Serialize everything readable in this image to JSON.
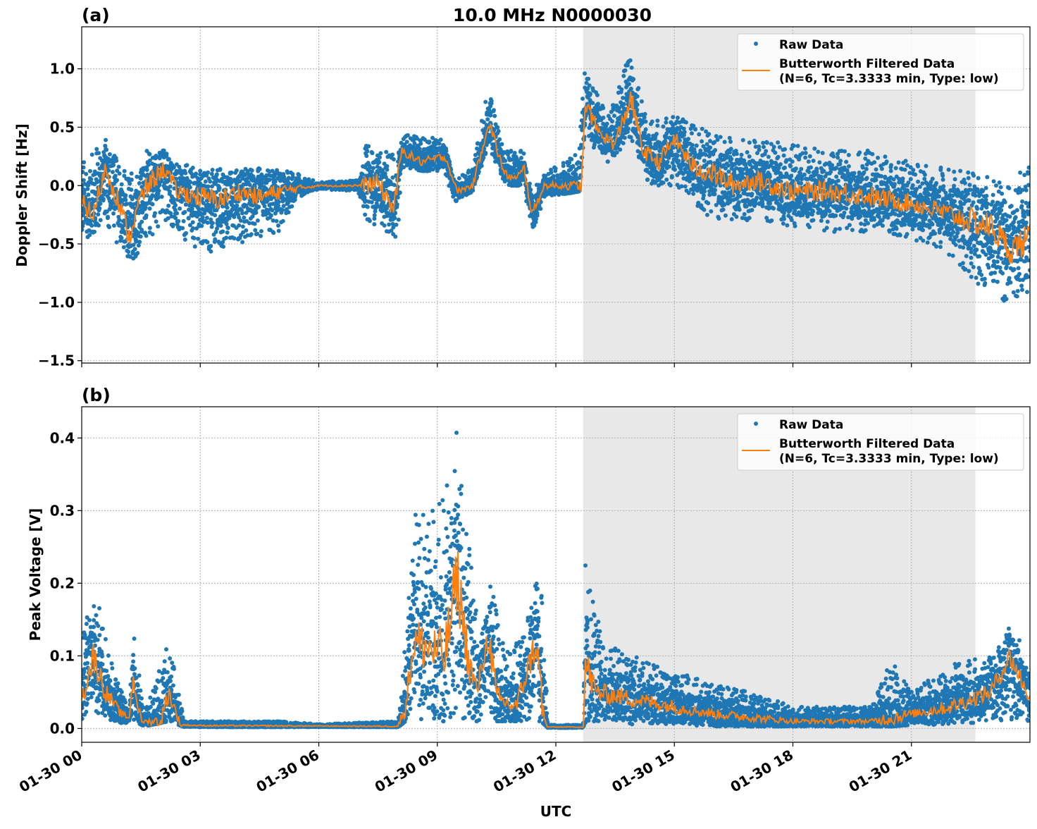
{
  "chart_data": [
    {
      "type": "scatter",
      "panel_label": "(a)",
      "title": "10.0 MHz N0000030",
      "xlabel": "",
      "ylabel": "Doppler Shift [Hz]",
      "xlim_hours_utc": [
        0,
        24
      ],
      "ylim": [
        -1.52,
        1.36
      ],
      "yticks": [
        1.0,
        0.5,
        0.0,
        -0.5,
        -1.0,
        -1.5
      ],
      "ytick_labels": [
        "1.0",
        "0.5",
        "0.0",
        "−0.5",
        "−1.0",
        "−1.5"
      ],
      "grid": true,
      "shaded_span_hours_utc": [
        12.69,
        22.62
      ],
      "shade_color": "#e8e8e8",
      "legend": {
        "placement": "top-right",
        "entries": [
          "Raw Data",
          "Butterworth Filtered Data",
          "(N=6, Tc=3.3333 min, Type: low)"
        ]
      },
      "series": [
        {
          "name": "Raw Data",
          "color": "#1f77b4",
          "marker": "dot",
          "range_by_hour": [
            [
              0,
              -0.5,
              0.2
            ],
            [
              0.6,
              -0.3,
              0.4
            ],
            [
              1.2,
              -0.7,
              0.1
            ],
            [
              1.6,
              -0.5,
              0.3
            ],
            [
              2.1,
              -0.3,
              0.3
            ],
            [
              2.4,
              -0.4,
              0.2
            ],
            [
              3,
              -0.6,
              0.15
            ],
            [
              4,
              -0.5,
              0.15
            ],
            [
              5,
              -0.4,
              0.15
            ],
            [
              5.5,
              -0.1,
              0.1
            ],
            [
              6,
              -0.03,
              0.03
            ],
            [
              7,
              -0.05,
              0.05
            ],
            [
              7.2,
              -0.3,
              0.35
            ],
            [
              8,
              -0.45,
              0.25
            ],
            [
              8.1,
              0.15,
              0.45
            ],
            [
              9.2,
              0.1,
              0.4
            ],
            [
              9.4,
              -0.15,
              0.05
            ],
            [
              9.9,
              -0.05,
              0.15
            ],
            [
              10.3,
              0.35,
              0.85
            ],
            [
              10.7,
              0.0,
              0.3
            ],
            [
              11.2,
              0.0,
              0.3
            ],
            [
              11.4,
              -0.45,
              -0.05
            ],
            [
              11.7,
              -0.1,
              0.1
            ],
            [
              12.6,
              -0.05,
              0.3
            ],
            [
              12.7,
              0.4,
              1.05
            ],
            [
              13.3,
              0.2,
              0.6
            ],
            [
              13.9,
              0.4,
              1.15
            ],
            [
              14.3,
              0.0,
              0.55
            ],
            [
              15,
              0.0,
              0.6
            ],
            [
              16,
              -0.3,
              0.45
            ],
            [
              17,
              -0.3,
              0.4
            ],
            [
              18,
              -0.35,
              0.35
            ],
            [
              19,
              -0.4,
              0.3
            ],
            [
              20,
              -0.4,
              0.3
            ],
            [
              21,
              -0.45,
              0.2
            ],
            [
              22,
              -0.6,
              0.15
            ],
            [
              22.8,
              -0.9,
              0.1
            ],
            [
              23.4,
              -1.0,
              0.0
            ],
            [
              24,
              -0.9,
              0.2
            ]
          ]
        },
        {
          "name": "Butterworth Filtered Data",
          "color": "#ff7f0e",
          "marker": "line",
          "points_by_hour": [
            [
              0,
              -0.15
            ],
            [
              0.3,
              -0.25
            ],
            [
              0.6,
              0.15
            ],
            [
              0.9,
              -0.1
            ],
            [
              1.2,
              -0.45
            ],
            [
              1.5,
              -0.1
            ],
            [
              1.8,
              0.05
            ],
            [
              2.1,
              0.15
            ],
            [
              2.4,
              -0.05
            ],
            [
              3,
              -0.1
            ],
            [
              3.5,
              -0.12
            ],
            [
              4,
              -0.05
            ],
            [
              4.5,
              -0.1
            ],
            [
              5,
              -0.05
            ],
            [
              5.5,
              -0.02
            ],
            [
              6,
              0.0
            ],
            [
              7,
              0.0
            ],
            [
              7.5,
              0.02
            ],
            [
              7.9,
              -0.2
            ],
            [
              8.1,
              0.3
            ],
            [
              8.6,
              0.2
            ],
            [
              9.2,
              0.25
            ],
            [
              9.5,
              -0.05
            ],
            [
              9.9,
              0.0
            ],
            [
              10.3,
              0.55
            ],
            [
              10.7,
              0.1
            ],
            [
              11.0,
              0.05
            ],
            [
              11.2,
              0.15
            ],
            [
              11.4,
              -0.25
            ],
            [
              11.7,
              0.0
            ],
            [
              12.65,
              0.0
            ],
            [
              12.75,
              0.7
            ],
            [
              13.1,
              0.45
            ],
            [
              13.5,
              0.35
            ],
            [
              13.9,
              0.75
            ],
            [
              14.2,
              0.3
            ],
            [
              14.6,
              0.2
            ],
            [
              15,
              0.4
            ],
            [
              15.5,
              0.15
            ],
            [
              16,
              0.1
            ],
            [
              16.5,
              0.0
            ],
            [
              17,
              0.05
            ],
            [
              18,
              -0.05
            ],
            [
              19,
              -0.05
            ],
            [
              20,
              -0.1
            ],
            [
              21,
              -0.15
            ],
            [
              22,
              -0.25
            ],
            [
              22.5,
              -0.3
            ],
            [
              23,
              -0.35
            ],
            [
              23.5,
              -0.55
            ],
            [
              24,
              -0.45
            ]
          ]
        }
      ]
    },
    {
      "type": "scatter",
      "panel_label": "(b)",
      "xlabel": "UTC",
      "ylabel": "Peak Voltage [V]",
      "xlim_hours_utc": [
        0,
        24
      ],
      "ylim": [
        -0.019,
        0.443
      ],
      "yticks": [
        0.0,
        0.1,
        0.2,
        0.3,
        0.4
      ],
      "ytick_labels": [
        "0.0",
        "0.1",
        "0.2",
        "0.3",
        "0.4"
      ],
      "xtick_labels": [
        "01-30 00",
        "01-30 03",
        "01-30 06",
        "01-30 09",
        "01-30 12",
        "01-30 15",
        "01-30 18",
        "01-30 21"
      ],
      "xticks_hours_utc": [
        0,
        3,
        6,
        9,
        12,
        15,
        18,
        21
      ],
      "grid": true,
      "shaded_span_hours_utc": [
        12.69,
        22.62
      ],
      "shade_color": "#e8e8e8",
      "legend": {
        "placement": "top-right",
        "entries": [
          "Raw Data",
          "Butterworth Filtered Data",
          "(N=6, Tc=3.3333 min, Type: low)"
        ]
      },
      "series": [
        {
          "name": "Raw Data",
          "color": "#1f77b4",
          "marker": "dot",
          "range_by_hour": [
            [
              0,
              0.01,
              0.12
            ],
            [
              0.3,
              0.02,
              0.2
            ],
            [
              0.8,
              0.01,
              0.08
            ],
            [
              1.2,
              0.005,
              0.03
            ],
            [
              1.3,
              0.01,
              0.14
            ],
            [
              1.6,
              0.003,
              0.02
            ],
            [
              2.2,
              0.01,
              0.12
            ],
            [
              2.6,
              0.002,
              0.01
            ],
            [
              5,
              0.002,
              0.01
            ],
            [
              6,
              0.002,
              0.006
            ],
            [
              8.0,
              0.002,
              0.01
            ],
            [
              8.2,
              0.01,
              0.12
            ],
            [
              8.4,
              0.01,
              0.3
            ],
            [
              9.0,
              0.01,
              0.3
            ],
            [
              9.5,
              0.01,
              0.42
            ],
            [
              9.8,
              0.01,
              0.25
            ],
            [
              10.1,
              0.01,
              0.12
            ],
            [
              10.4,
              0.01,
              0.22
            ],
            [
              10.7,
              0.01,
              0.1
            ],
            [
              11.2,
              0.01,
              0.14
            ],
            [
              11.6,
              0.01,
              0.26
            ],
            [
              11.8,
              0.001,
              0.005
            ],
            [
              12.7,
              0.001,
              0.005
            ],
            [
              12.75,
              0.01,
              0.23
            ],
            [
              13.2,
              0.01,
              0.12
            ],
            [
              14,
              0.005,
              0.1
            ],
            [
              15,
              0.005,
              0.08
            ],
            [
              16,
              0.003,
              0.06
            ],
            [
              17,
              0.003,
              0.05
            ],
            [
              18,
              0.003,
              0.03
            ],
            [
              19,
              0.003,
              0.03
            ],
            [
              20,
              0.003,
              0.03
            ],
            [
              20.5,
              0.003,
              0.1
            ],
            [
              21,
              0.005,
              0.05
            ],
            [
              22,
              0.005,
              0.09
            ],
            [
              23,
              0.01,
              0.1
            ],
            [
              23.6,
              0.01,
              0.15
            ],
            [
              24,
              0.01,
              0.07
            ]
          ]
        },
        {
          "name": "Butterworth Filtered Data",
          "color": "#ff7f0e",
          "marker": "line",
          "points_by_hour": [
            [
              0,
              0.04
            ],
            [
              0.3,
              0.1
            ],
            [
              0.6,
              0.05
            ],
            [
              1.0,
              0.02
            ],
            [
              1.2,
              0.015
            ],
            [
              1.3,
              0.07
            ],
            [
              1.5,
              0.01
            ],
            [
              2.0,
              0.01
            ],
            [
              2.2,
              0.05
            ],
            [
              2.5,
              0.005
            ],
            [
              3,
              0.004
            ],
            [
              8.0,
              0.003
            ],
            [
              8.2,
              0.03
            ],
            [
              8.4,
              0.12
            ],
            [
              8.8,
              0.11
            ],
            [
              9.2,
              0.1
            ],
            [
              9.5,
              0.21
            ],
            [
              9.8,
              0.09
            ],
            [
              10.0,
              0.05
            ],
            [
              10.3,
              0.13
            ],
            [
              10.5,
              0.04
            ],
            [
              11.0,
              0.03
            ],
            [
              11.5,
              0.12
            ],
            [
              11.7,
              0.01
            ],
            [
              11.8,
              0.002
            ],
            [
              12.7,
              0.002
            ],
            [
              12.75,
              0.09
            ],
            [
              13,
              0.05
            ],
            [
              14,
              0.04
            ],
            [
              15,
              0.03
            ],
            [
              16,
              0.02
            ],
            [
              17,
              0.015
            ],
            [
              18,
              0.01
            ],
            [
              19,
              0.01
            ],
            [
              20,
              0.01
            ],
            [
              21,
              0.02
            ],
            [
              22,
              0.03
            ],
            [
              23,
              0.05
            ],
            [
              23.5,
              0.1
            ],
            [
              24,
              0.04
            ]
          ]
        }
      ]
    }
  ]
}
